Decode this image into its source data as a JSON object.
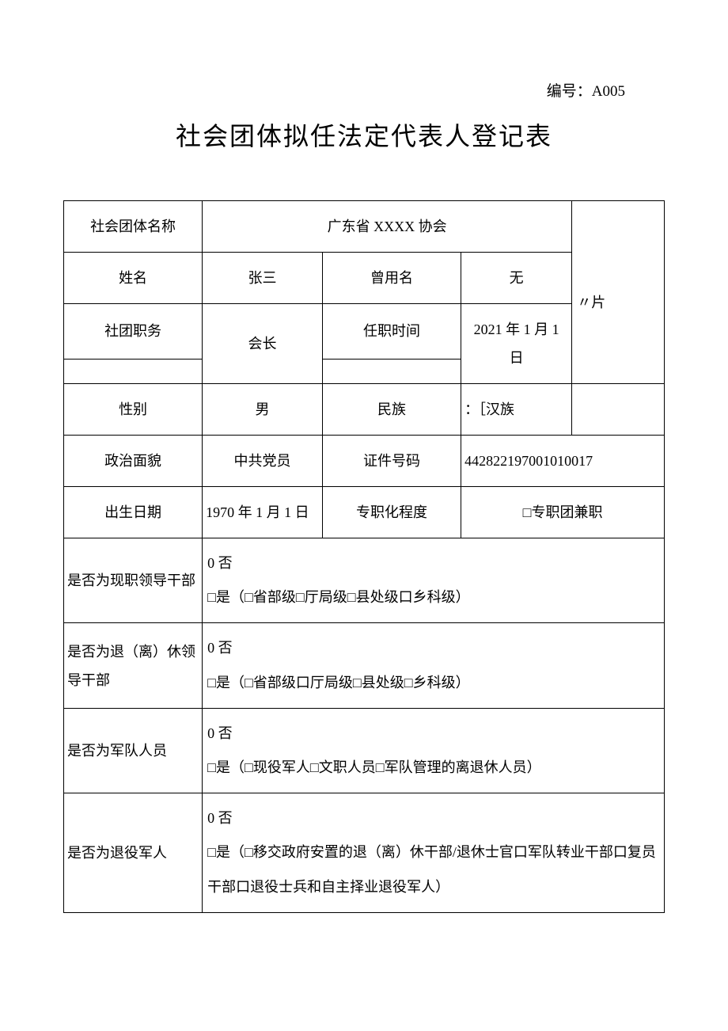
{
  "doc_number_label": "编号：A005",
  "title": "社会团体拟任法定代表人登记表",
  "rows": {
    "org_name_label": "社会团体名称",
    "org_name": "广东省 XXXX 协会",
    "name_label": "姓名",
    "name": "张三",
    "former_name_label": "曾用名",
    "former_name": "无",
    "position_label": "社团职务",
    "position": "会长",
    "tenure_label": "任职时间",
    "tenure": "2021 年 1 月 1 日",
    "gender_label": "性别",
    "gender": "男",
    "ethnicity_label": "民族",
    "ethnicity": "：［汉族",
    "political_label": "政治面貌",
    "political": "中共党员",
    "id_label": "证件号码",
    "id_value": "442822197001010017",
    "dob_label": "出生日期",
    "dob": "1970 年 1 月 1 日",
    "fulltime_label": "专职化程度",
    "fulltime_value": "□专职团兼职",
    "photo_label": "〃片",
    "q1_label": "是否为现职领导干部",
    "q1_value": "0 否\n□是（□省部级□厅局级□县处级口乡科级）",
    "q2_label": "是否为退（离）休领导干部",
    "q2_value": "0 否\n□是（□省部级口厅局级□县处级□乡科级）",
    "q3_label": "是否为军队人员",
    "q3_value": "0 否\n□是（□现役军人□文职人员□军队管理的离退休人员）",
    "q4_label": "是否为退役军人",
    "q4_value": "0 否\n□是（□移交政府安置的退（离）休干部/退休士官口军队转业干部口复员干部口退役士兵和自主择业退役军人）"
  },
  "colors": {
    "text": "#000000",
    "border": "#000000",
    "background": "#ffffff"
  },
  "fonts": {
    "body_family": "SimSun",
    "title_size_pt": 24,
    "body_size_pt": 14
  }
}
